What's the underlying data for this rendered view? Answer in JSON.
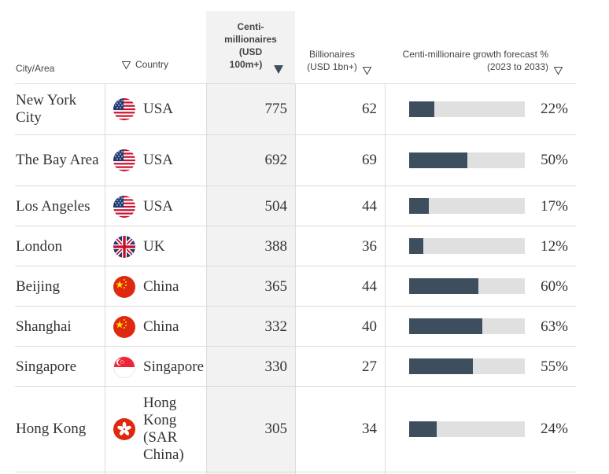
{
  "header": {
    "city": "City/Area",
    "country": "Country",
    "centi_line1": "Centi-",
    "centi_line2": "millionaires",
    "centi_line3": "(USD",
    "centi_line4": "100m+)",
    "billionaires_line1": "Billionaires",
    "billionaires_line2": "(USD 1bn+)",
    "growth_line1": "Centi-millionaire growth forecast %",
    "growth_line2": "(2023 to 2033)"
  },
  "colors": {
    "bar": "#3d4f5e",
    "track": "#e0e0e0",
    "sorted_col": "#f2f2f2"
  },
  "rows": [
    {
      "city": "New York City",
      "flag": "usa-flag-icon",
      "country": "USA",
      "centi": "775",
      "billionaires": "62",
      "growth": 22,
      "growth_label": "22%"
    },
    {
      "city": "The Bay Area",
      "flag": "usa-flag-icon",
      "country": "USA",
      "centi": "692",
      "billionaires": "69",
      "growth": 50,
      "growth_label": "50%"
    },
    {
      "city": "Los Angeles",
      "flag": "usa-flag-icon",
      "country": "USA",
      "centi": "504",
      "billionaires": "44",
      "growth": 17,
      "growth_label": "17%"
    },
    {
      "city": "London",
      "flag": "uk-flag-icon",
      "country": "UK",
      "centi": "388",
      "billionaires": "36",
      "growth": 12,
      "growth_label": "12%"
    },
    {
      "city": "Beijing",
      "flag": "china-flag-icon",
      "country": "China",
      "centi": "365",
      "billionaires": "44",
      "growth": 60,
      "growth_label": "60%"
    },
    {
      "city": "Shanghai",
      "flag": "china-flag-icon",
      "country": "China",
      "centi": "332",
      "billionaires": "40",
      "growth": 63,
      "growth_label": "63%"
    },
    {
      "city": "Singapore",
      "flag": "singapore-flag-icon",
      "country": "Singapore",
      "centi": "330",
      "billionaires": "27",
      "growth": 55,
      "growth_label": "55%"
    },
    {
      "city": "Hong Kong",
      "flag": "hong-kong-flag-icon",
      "country": "Hong Kong (SAR China)",
      "centi": "305",
      "billionaires": "34",
      "growth": 24,
      "growth_label": "24%"
    }
  ]
}
